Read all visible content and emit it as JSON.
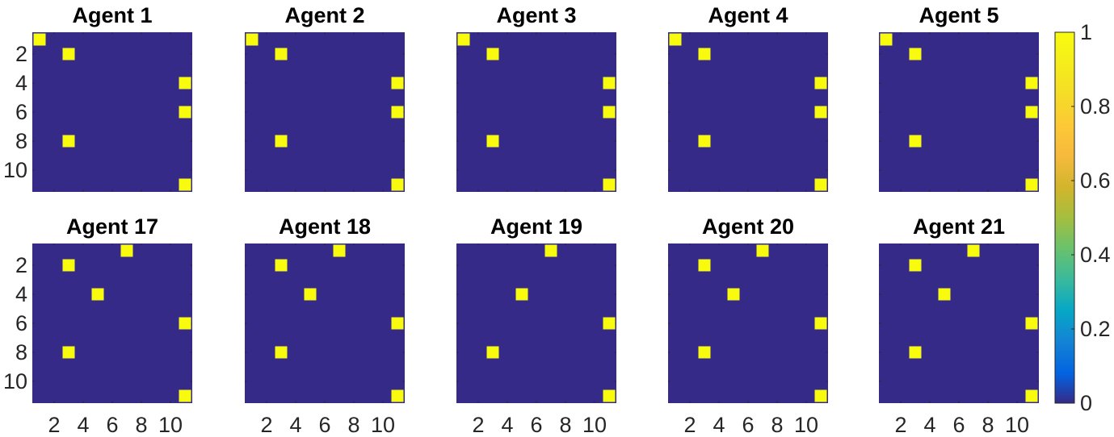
{
  "chart_data": {
    "type": "heatmap",
    "colormap": "parula",
    "background_color": "#352a87",
    "cell_color": "#f9fb0e",
    "grid": "off",
    "matrix_size": [
      11,
      11
    ],
    "x_ticks": [
      2,
      4,
      6,
      8,
      10
    ],
    "y_ticks": [
      2,
      4,
      6,
      8,
      10
    ],
    "colorbar": {
      "position": "right",
      "range": [
        0,
        1
      ],
      "ticks": [
        "0",
        "0.2",
        "0.4",
        "0.6",
        "0.8",
        "1"
      ]
    },
    "panels": [
      {
        "title": "Agent 1",
        "row": 0,
        "col": 0,
        "cells": [
          [
            1,
            1
          ],
          [
            2,
            3
          ],
          [
            4,
            11
          ],
          [
            6,
            11
          ],
          [
            8,
            3
          ],
          [
            11,
            11
          ]
        ]
      },
      {
        "title": "Agent 2",
        "row": 0,
        "col": 1,
        "cells": [
          [
            1,
            1
          ],
          [
            2,
            3
          ],
          [
            4,
            11
          ],
          [
            6,
            11
          ],
          [
            8,
            3
          ],
          [
            11,
            11
          ]
        ]
      },
      {
        "title": "Agent 3",
        "row": 0,
        "col": 2,
        "cells": [
          [
            1,
            1
          ],
          [
            2,
            3
          ],
          [
            4,
            11
          ],
          [
            6,
            11
          ],
          [
            8,
            3
          ],
          [
            11,
            11
          ]
        ]
      },
      {
        "title": "Agent 4",
        "row": 0,
        "col": 3,
        "cells": [
          [
            1,
            1
          ],
          [
            2,
            3
          ],
          [
            4,
            11
          ],
          [
            6,
            11
          ],
          [
            8,
            3
          ],
          [
            11,
            11
          ]
        ]
      },
      {
        "title": "Agent 5",
        "row": 0,
        "col": 4,
        "cells": [
          [
            1,
            1
          ],
          [
            2,
            3
          ],
          [
            4,
            11
          ],
          [
            6,
            11
          ],
          [
            8,
            3
          ],
          [
            11,
            11
          ]
        ]
      },
      {
        "title": "Agent 17",
        "row": 1,
        "col": 0,
        "cells": [
          [
            1,
            7
          ],
          [
            2,
            3
          ],
          [
            4,
            5
          ],
          [
            6,
            11
          ],
          [
            8,
            3
          ],
          [
            11,
            11
          ]
        ]
      },
      {
        "title": "Agent 18",
        "row": 1,
        "col": 1,
        "cells": [
          [
            1,
            7
          ],
          [
            2,
            3
          ],
          [
            4,
            5
          ],
          [
            6,
            11
          ],
          [
            8,
            3
          ],
          [
            11,
            11
          ]
        ]
      },
      {
        "title": "Agent 19",
        "row": 1,
        "col": 2,
        "cells": [
          [
            1,
            7
          ],
          [
            4,
            5
          ],
          [
            6,
            11
          ],
          [
            8,
            3
          ],
          [
            11,
            11
          ]
        ]
      },
      {
        "title": "Agent 20",
        "row": 1,
        "col": 3,
        "cells": [
          [
            1,
            7
          ],
          [
            2,
            3
          ],
          [
            4,
            5
          ],
          [
            6,
            11
          ],
          [
            8,
            3
          ],
          [
            11,
            11
          ]
        ]
      },
      {
        "title": "Agent 21",
        "row": 1,
        "col": 4,
        "cells": [
          [
            1,
            7
          ],
          [
            2,
            3
          ],
          [
            4,
            5
          ],
          [
            6,
            11
          ],
          [
            8,
            3
          ],
          [
            11,
            11
          ]
        ]
      }
    ]
  }
}
